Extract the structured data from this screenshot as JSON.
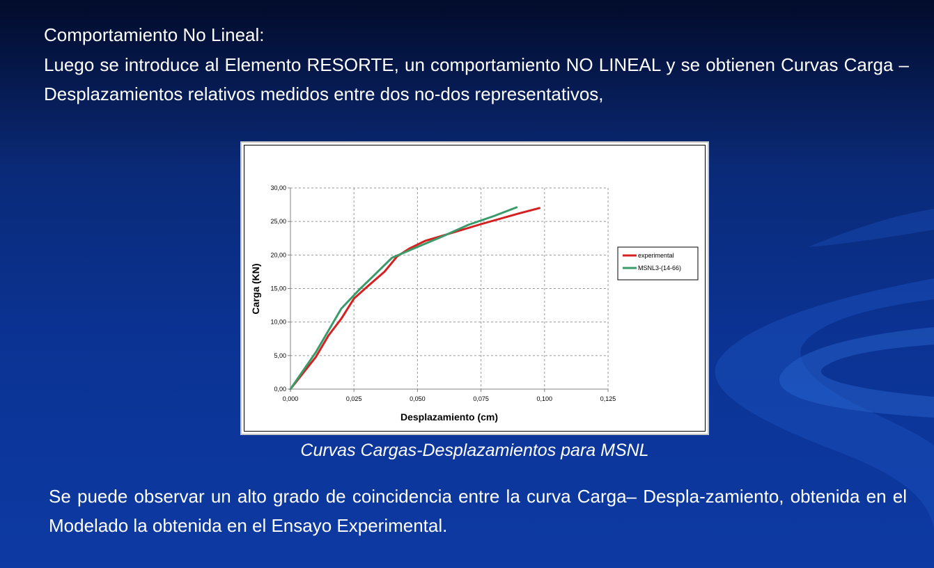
{
  "slide": {
    "heading": "Comportamiento No Lineal:",
    "intro": "Luego se introduce al Elemento RESORTE, un comportamiento NO LINEAL y se obtienen Curvas Carga – Desplazamientos relativos medidos entre dos no-dos representativos,",
    "caption": "Curvas Cargas-Desplazamientos para MSNL",
    "conclusion": "Se puede observar un alto grado de coincidencia entre la curva Carga– Despla-zamiento, obtenida en el Modelado la obtenida en el Ensayo Experimental."
  },
  "chart_data": {
    "type": "line",
    "title": "",
    "xlabel": "Desplazamiento (cm)",
    "ylabel": "Carga (KN)",
    "xlim": [
      0,
      0.125
    ],
    "ylim": [
      0,
      30
    ],
    "x_ticks": [
      "0,000",
      "0,025",
      "0,050",
      "0,075",
      "0,100",
      "0,125"
    ],
    "y_ticks": [
      "0,00",
      "5,00",
      "10,00",
      "15,00",
      "20,00",
      "25,00",
      "30,00"
    ],
    "x_tick_values": [
      0,
      0.025,
      0.05,
      0.075,
      0.1,
      0.125
    ],
    "y_tick_values": [
      0,
      5,
      10,
      15,
      20,
      25,
      30
    ],
    "grid": true,
    "legend_position": "right",
    "series": [
      {
        "name": "experimental",
        "color": "#d42020",
        "x": [
          0,
          0.01,
          0.015,
          0.02,
          0.025,
          0.03,
          0.037,
          0.042,
          0.047,
          0.053,
          0.06,
          0.075,
          0.09,
          0.098
        ],
        "y": [
          0,
          4.8,
          8,
          10.5,
          13.5,
          15.2,
          17.5,
          19.8,
          21,
          22.1,
          22.9,
          24.6,
          26.2,
          27
        ]
      },
      {
        "name": "MSNL3-(14-66)",
        "color": "#3a9a6a",
        "x": [
          0,
          0.01,
          0.02,
          0.027,
          0.033,
          0.04,
          0.05,
          0.06,
          0.07,
          0.08,
          0.089
        ],
        "y": [
          0,
          5.5,
          12,
          14.8,
          17,
          19.6,
          21.2,
          22.8,
          24.5,
          25.8,
          27.1
        ]
      }
    ]
  }
}
